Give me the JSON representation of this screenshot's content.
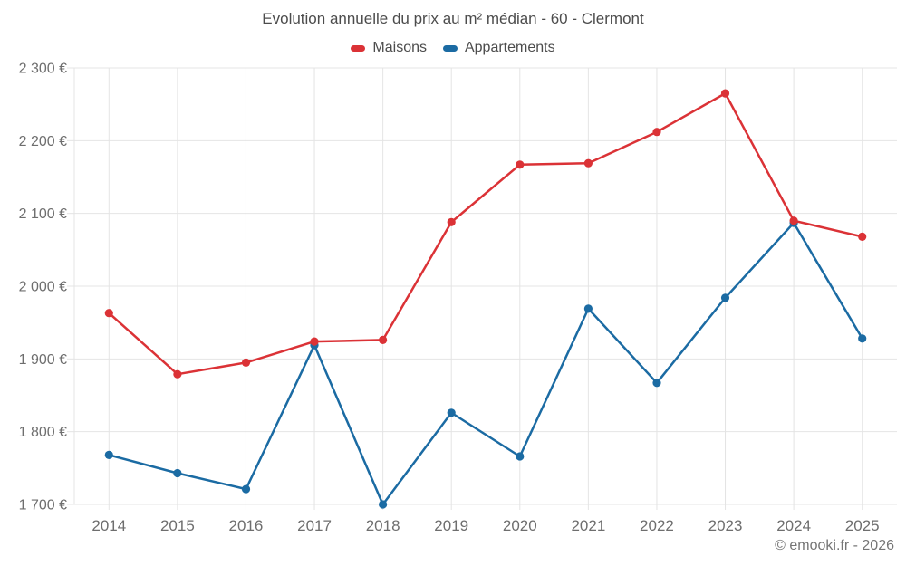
{
  "page": {
    "title": "Evolution annuelle du prix au m² médian - 60 - Clermont",
    "footer": "© emooki.fr - 2026"
  },
  "legend": {
    "items": [
      {
        "label": "Maisons",
        "color": "#db3236"
      },
      {
        "label": "Appartements",
        "color": "#1b6ba3"
      }
    ]
  },
  "chart_data": {
    "type": "line",
    "title": "Evolution annuelle du prix au m² médian - 60 - Clermont",
    "categories": [
      "2014",
      "2015",
      "2016",
      "2017",
      "2018",
      "2019",
      "2020",
      "2021",
      "2022",
      "2023",
      "2024",
      "2025"
    ],
    "series": [
      {
        "name": "Maisons",
        "color": "#db3236",
        "values": [
          1963,
          1879,
          1895,
          1924,
          1926,
          2088,
          2167,
          2169,
          2212,
          2265,
          2090,
          2068
        ]
      },
      {
        "name": "Appartements",
        "color": "#1b6ba3",
        "values": [
          1768,
          1743,
          1721,
          1919,
          1700,
          1826,
          1766,
          1969,
          1867,
          1984,
          2087,
          1928
        ]
      }
    ],
    "xlabel": "",
    "ylabel": "",
    "ylim": [
      1700,
      2300
    ],
    "ytick_step": 100,
    "ytick_labels": [
      "1 700 €",
      "1 800 €",
      "1 900 €",
      "2 000 €",
      "2 100 €",
      "2 200 €",
      "2 300 €"
    ],
    "grid": true,
    "legend_position": "top",
    "unit": "€"
  },
  "colors": {
    "grid": "#e4e4e4",
    "axis_text": "#6e6e6e",
    "title_text": "#4c4c4c"
  }
}
